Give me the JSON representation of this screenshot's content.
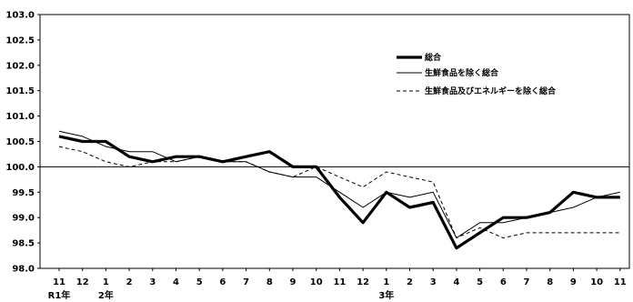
{
  "chart_data": {
    "type": "line",
    "x": [
      "11",
      "12",
      "1",
      "2",
      "3",
      "4",
      "5",
      "6",
      "7",
      "8",
      "9",
      "10",
      "11",
      "12",
      "1",
      "2",
      "3",
      "4",
      "5",
      "6",
      "7",
      "8",
      "9",
      "10",
      "11"
    ],
    "era_labels": [
      {
        "index": 0,
        "label": "R1年"
      },
      {
        "index": 2,
        "label": "2年"
      },
      {
        "index": 14,
        "label": "3年"
      }
    ],
    "ylim": [
      98.0,
      103.0
    ],
    "yticks": [
      "98.0",
      "98.5",
      "99.0",
      "99.5",
      "100.0",
      "100.5",
      "101.0",
      "101.5",
      "102.0",
      "102.5",
      "103.0"
    ],
    "reference_line": 100.0,
    "legend_position": "top-right",
    "series": [
      {
        "name": "総合",
        "style": "thick-solid",
        "color": "#000000",
        "values": [
          100.6,
          100.5,
          100.5,
          100.2,
          100.1,
          100.2,
          100.2,
          100.1,
          100.2,
          100.3,
          100.0,
          100.0,
          99.4,
          98.9,
          99.5,
          99.2,
          99.3,
          98.4,
          98.7,
          99.0,
          99.0,
          99.1,
          99.5,
          99.4,
          99.4
        ]
      },
      {
        "name": "生鮮食品を除く総合",
        "style": "thin-solid",
        "color": "#000000",
        "values": [
          100.7,
          100.6,
          100.4,
          100.3,
          100.3,
          100.1,
          100.2,
          100.1,
          100.1,
          99.9,
          99.8,
          99.8,
          99.5,
          99.2,
          99.5,
          99.4,
          99.5,
          98.6,
          98.9,
          98.9,
          99.0,
          99.1,
          99.2,
          99.4,
          99.5
        ]
      },
      {
        "name": "生鮮食品及びエネルギーを除く総合",
        "style": "dashed",
        "color": "#000000",
        "values": [
          100.4,
          100.3,
          100.1,
          100.0,
          100.1,
          100.1,
          100.2,
          100.1,
          100.1,
          99.9,
          99.8,
          100.0,
          99.8,
          99.6,
          99.9,
          99.8,
          99.7,
          98.6,
          98.8,
          98.6,
          98.7,
          98.7,
          98.7,
          98.7,
          98.7
        ]
      }
    ]
  }
}
